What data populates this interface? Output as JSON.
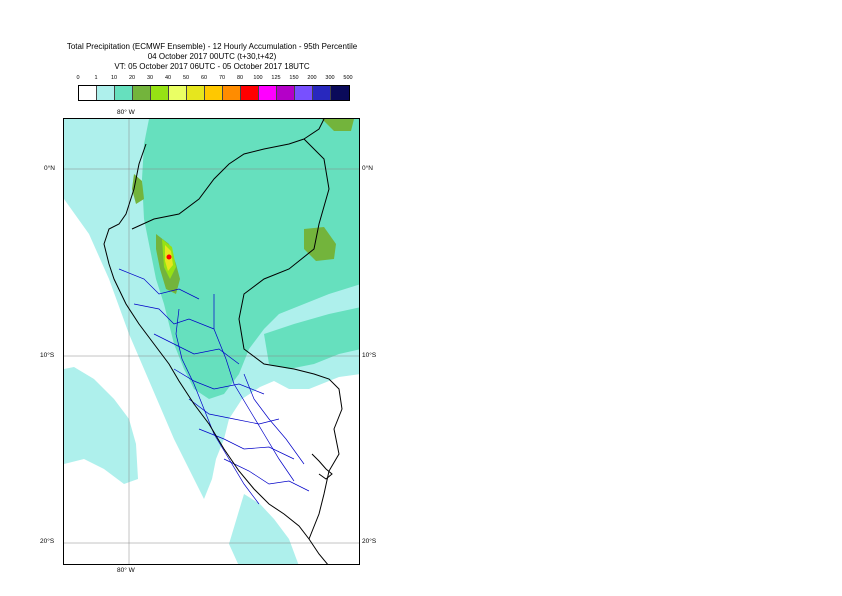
{
  "header": {
    "title_line1": "Total Precipitation (ECMWF Ensemble) - 12 Hourly Accumulation - 95th Percentile",
    "title_line2": "04 October 2017 00UTC (t+30,t+42)",
    "title_line3": "VT: 05 October 2017 06UTC - 05 October 2017 18UTC"
  },
  "legend": {
    "ticks": [
      "0",
      "1",
      "10",
      "20",
      "30",
      "40",
      "50",
      "60",
      "70",
      "80",
      "100",
      "125",
      "150",
      "200",
      "300",
      "500"
    ],
    "colors": [
      "#ffffff",
      "#aef0ec",
      "#66e0be",
      "#73b43c",
      "#96e214",
      "#eaff64",
      "#e6e61e",
      "#ffc800",
      "#ff8c00",
      "#ff0000",
      "#ff00ff",
      "#b400c8",
      "#7850ff",
      "#2828be",
      "#0a0a5a"
    ]
  },
  "map": {
    "lon_labels": {
      "top": "80° W",
      "bottom": "80° W"
    },
    "lat_labels": [
      {
        "left": "0°N",
        "right": "0°N"
      },
      {
        "left": "10°S",
        "right": "10°S"
      },
      {
        "left": "20°S",
        "right": "20°S"
      }
    ],
    "colors": {
      "light": "#aef0ec",
      "medium": "#66e0be",
      "green": "#73b43c",
      "yellowgreen": "#96e214",
      "yellow": "#e6e61e",
      "red": "#ff0000",
      "country_border": "#000000",
      "region_border": "#0000c8",
      "grid": "#888888"
    }
  }
}
